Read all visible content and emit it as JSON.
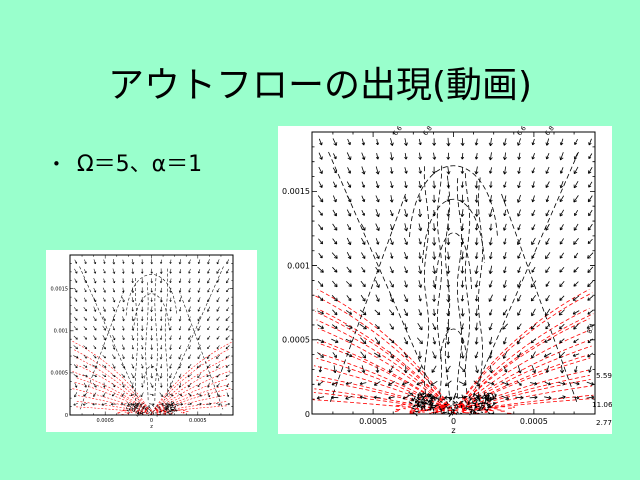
{
  "slide": {
    "background_color": "#99FFCC",
    "title": "アウトフローの出現(動画)",
    "bullet": {
      "marker": "•",
      "text": "Ω＝5、α＝1"
    }
  },
  "chart_data": [
    {
      "id": "panel-small",
      "type": "quiver-contour",
      "title": "",
      "xlabel": "z",
      "ylabel": "",
      "x_tick_labels": [
        "0.0005",
        "0",
        "0.0005"
      ],
      "x_tick_values": [
        -0.0005,
        0,
        0.0005
      ],
      "y_tick_labels": [
        "0.0015",
        "0.001",
        "0.0005",
        "0"
      ],
      "y_tick_values": [
        0.0015,
        0.001,
        0.0005,
        0
      ],
      "x_range_display": [
        -0.00088,
        0.00088
      ],
      "y_range_display": [
        0,
        0.0019
      ],
      "grid": false,
      "frame_color": "#000000",
      "series": [
        {
          "name": "velocity-field",
          "style": "quiver",
          "color": "#000000",
          "description": "black arrows: infall converging toward bottom-center, horizontal outflow along the equator"
        },
        {
          "name": "density-contours",
          "style": "dashed-fan",
          "color": "#ff0000",
          "description": "red dashed contours fanning radially out of the bottom-center region"
        },
        {
          "name": "field-contours",
          "style": "dashed",
          "color": "#000000",
          "description": "black dashed contours: nested arches on the axis, vertical jet lines, crossing diagonals"
        }
      ]
    },
    {
      "id": "panel-large",
      "type": "quiver-contour",
      "title": "",
      "xlabel": "z",
      "ylabel": "",
      "x_tick_labels": [
        "0.0005",
        "0",
        "0.0005"
      ],
      "x_tick_values": [
        -0.0005,
        0,
        0.0005
      ],
      "y_tick_labels": [
        "0.0015",
        "0.001",
        "0.0005",
        "0"
      ],
      "y_tick_values": [
        0.0015,
        0.001,
        0.0005,
        0
      ],
      "x_range_display": [
        -0.00088,
        0.00088
      ],
      "y_range_display": [
        0,
        0.0019
      ],
      "grid": false,
      "frame_color": "#000000",
      "top_contour_labels": [
        "6.6",
        "6.8",
        "6.6",
        "6.8"
      ],
      "right_contour_labels": [
        "5.59",
        "11.06",
        "2.77"
      ],
      "rotated_contour_label": "8.4",
      "series": [
        {
          "name": "velocity-field",
          "style": "quiver",
          "color": "#000000",
          "description": "black arrows: infall converging toward bottom-center disk, horizontal outflow along the equator"
        },
        {
          "name": "density-contours",
          "style": "dashed-fan",
          "color": "#ff0000",
          "description": "red dashed contours fanning radially out of the bottom-center region"
        },
        {
          "name": "field-contours",
          "style": "dashed",
          "color": "#000000",
          "description": "black dashed contours: nested arches on the axis, vertical jet lines, crossing diagonals"
        }
      ]
    }
  ]
}
